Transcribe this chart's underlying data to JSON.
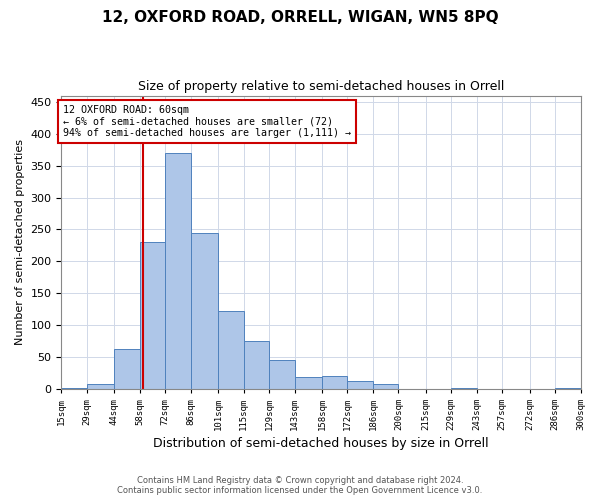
{
  "title": "12, OXFORD ROAD, ORRELL, WIGAN, WN5 8PQ",
  "subtitle": "Size of property relative to semi-detached houses in Orrell",
  "xlabel": "Distribution of semi-detached houses by size in Orrell",
  "ylabel": "Number of semi-detached properties",
  "footer_line1": "Contains HM Land Registry data © Crown copyright and database right 2024.",
  "footer_line2": "Contains public sector information licensed under the Open Government Licence v3.0.",
  "bar_edges": [
    15,
    29,
    44,
    58,
    72,
    86,
    101,
    115,
    129,
    143,
    158,
    172,
    186,
    200,
    215,
    229,
    243,
    257,
    272,
    286,
    300
  ],
  "bar_heights": [
    2,
    8,
    62,
    230,
    370,
    245,
    122,
    75,
    45,
    18,
    20,
    12,
    8,
    0,
    0,
    1,
    0,
    0,
    0,
    1
  ],
  "bar_color": "#aec6e8",
  "bar_edge_color": "#4f81bd",
  "property_size": 60,
  "property_line_color": "#cc0000",
  "annotation_text": "12 OXFORD ROAD: 60sqm\n← 6% of semi-detached houses are smaller (72)\n94% of semi-detached houses are larger (1,111) →",
  "annotation_box_color": "#cc0000",
  "ylim": [
    0,
    460
  ],
  "yticks": [
    0,
    50,
    100,
    150,
    200,
    250,
    300,
    350,
    400,
    450
  ],
  "background_color": "#ffffff",
  "grid_color": "#d0d8e8",
  "tick_labels": [
    "15sqm",
    "29sqm",
    "44sqm",
    "58sqm",
    "72sqm",
    "86sqm",
    "101sqm",
    "115sqm",
    "129sqm",
    "143sqm",
    "158sqm",
    "172sqm",
    "186sqm",
    "200sqm",
    "215sqm",
    "229sqm",
    "243sqm",
    "257sqm",
    "272sqm",
    "286sqm",
    "300sqm"
  ]
}
